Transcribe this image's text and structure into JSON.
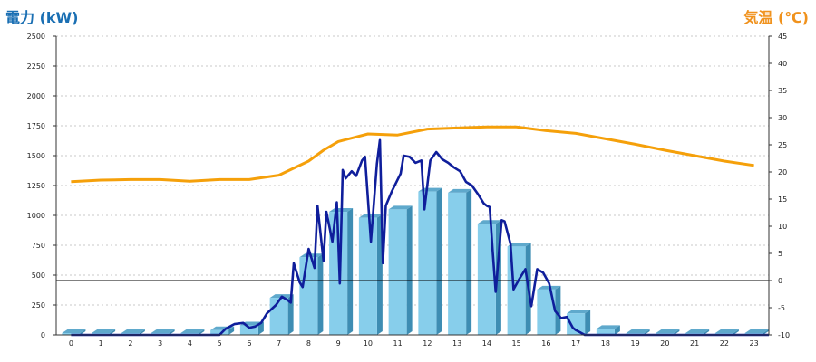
{
  "chart_data": {
    "type": "bar",
    "title_left": "電力 (kW)",
    "title_right": "気温 (℃)",
    "y_left": {
      "min": 0,
      "max": 2500,
      "ticks": [
        0,
        250,
        500,
        750,
        1000,
        1250,
        1500,
        1750,
        2000,
        2250,
        2500
      ]
    },
    "y_right": {
      "min": -10,
      "max": 45,
      "ticks": [
        -10,
        -5,
        0,
        5,
        10,
        15,
        20,
        25,
        30,
        35,
        40,
        45
      ]
    },
    "categories": [
      "0",
      "1",
      "2",
      "3",
      "4",
      "5",
      "6",
      "7",
      "8",
      "9",
      "10",
      "11",
      "12",
      "13",
      "14",
      "15",
      "16",
      "17",
      "18",
      "19",
      "20",
      "21",
      "22",
      "23"
    ],
    "grid": true,
    "bars": {
      "values": [
        0,
        0,
        0,
        0,
        0,
        40,
        80,
        310,
        650,
        1030,
        980,
        1050,
        1200,
        1190,
        930,
        740,
        380,
        180,
        50,
        0,
        0,
        0,
        0,
        0
      ],
      "color": "#87ceeb"
    },
    "power_line": {
      "color": "#0f1e9b",
      "points": [
        [
          0,
          0
        ],
        [
          5,
          0
        ],
        [
          5.2,
          50
        ],
        [
          5.5,
          90
        ],
        [
          5.8,
          100
        ],
        [
          6,
          60
        ],
        [
          6.2,
          70
        ],
        [
          6.4,
          100
        ],
        [
          6.6,
          180
        ],
        [
          6.9,
          250
        ],
        [
          7.1,
          320
        ],
        [
          7.3,
          290
        ],
        [
          7.4,
          270
        ],
        [
          7.5,
          600
        ],
        [
          7.7,
          440
        ],
        [
          7.8,
          400
        ],
        [
          8,
          720
        ],
        [
          8.2,
          560
        ],
        [
          8.3,
          1080
        ],
        [
          8.5,
          620
        ],
        [
          8.6,
          1030
        ],
        [
          8.8,
          780
        ],
        [
          8.95,
          1110
        ],
        [
          9.05,
          430
        ],
        [
          9.15,
          1380
        ],
        [
          9.25,
          1310
        ],
        [
          9.45,
          1370
        ],
        [
          9.6,
          1330
        ],
        [
          9.8,
          1460
        ],
        [
          9.9,
          1490
        ],
        [
          10.1,
          780
        ],
        [
          10.3,
          1430
        ],
        [
          10.4,
          1630
        ],
        [
          10.5,
          600
        ],
        [
          10.6,
          1080
        ],
        [
          10.8,
          1200
        ],
        [
          11,
          1300
        ],
        [
          11.1,
          1350
        ],
        [
          11.2,
          1500
        ],
        [
          11.4,
          1490
        ],
        [
          11.6,
          1440
        ],
        [
          11.8,
          1460
        ],
        [
          11.9,
          1050
        ],
        [
          12.1,
          1460
        ],
        [
          12.3,
          1530
        ],
        [
          12.5,
          1470
        ],
        [
          12.7,
          1440
        ],
        [
          12.9,
          1400
        ],
        [
          13.1,
          1370
        ],
        [
          13.3,
          1280
        ],
        [
          13.5,
          1250
        ],
        [
          13.7,
          1180
        ],
        [
          13.9,
          1100
        ],
        [
          14,
          1080
        ],
        [
          14.1,
          1070
        ],
        [
          14.2,
          700
        ],
        [
          14.3,
          360
        ],
        [
          14.5,
          960
        ],
        [
          14.6,
          950
        ],
        [
          14.8,
          760
        ],
        [
          14.9,
          380
        ],
        [
          15.1,
          470
        ],
        [
          15.3,
          550
        ],
        [
          15.5,
          240
        ],
        [
          15.7,
          550
        ],
        [
          15.9,
          520
        ],
        [
          16.1,
          430
        ],
        [
          16.3,
          200
        ],
        [
          16.5,
          140
        ],
        [
          16.7,
          150
        ],
        [
          16.9,
          60
        ],
        [
          17,
          40
        ],
        [
          17.3,
          0
        ],
        [
          23.5,
          0
        ]
      ]
    },
    "temp_line": {
      "color": "#f5a00a",
      "points": [
        [
          0,
          18.2
        ],
        [
          1,
          18.5
        ],
        [
          2,
          18.6
        ],
        [
          3,
          18.6
        ],
        [
          4,
          18.3
        ],
        [
          5,
          18.6
        ],
        [
          6,
          18.6
        ],
        [
          7,
          19.4
        ],
        [
          8,
          22
        ],
        [
          8.5,
          24
        ],
        [
          9,
          25.6
        ],
        [
          10,
          27
        ],
        [
          11,
          26.8
        ],
        [
          12,
          27.9
        ],
        [
          13,
          28.1
        ],
        [
          14,
          28.3
        ],
        [
          15,
          28.3
        ],
        [
          16,
          27.6
        ],
        [
          17,
          27.1
        ],
        [
          18,
          26.1
        ],
        [
          19,
          25.1
        ],
        [
          20,
          24
        ],
        [
          21,
          23
        ],
        [
          22,
          22
        ],
        [
          23,
          21.2
        ]
      ]
    }
  }
}
